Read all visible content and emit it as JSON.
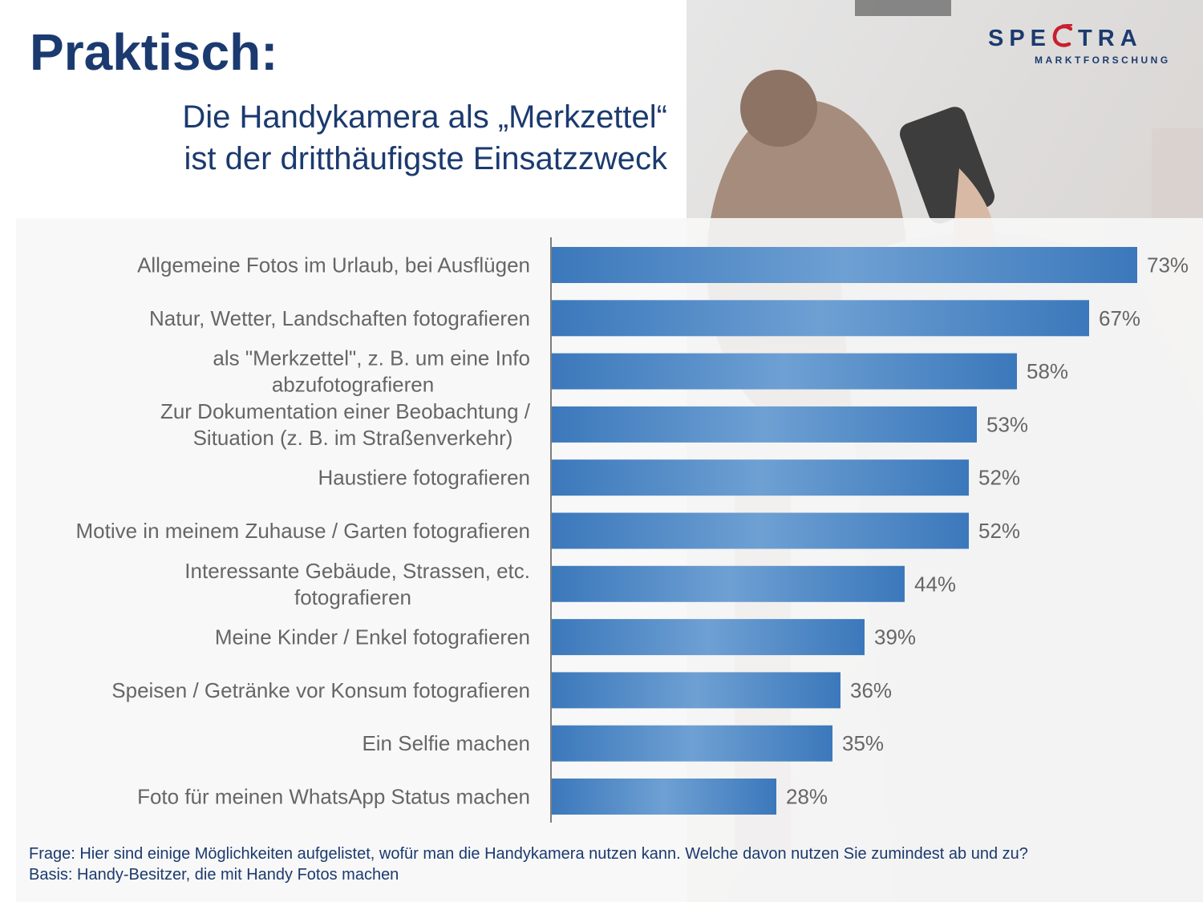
{
  "header": {
    "title": "Praktisch:",
    "subtitle_line1": "Die Handykamera als „Merkzettel“",
    "subtitle_line2": "ist der dritthäufigste Einsatzzweck"
  },
  "logo": {
    "word_a": "SPE",
    "word_b": "TRA",
    "subtitle": "MARKTFORSCHUNG"
  },
  "colors": {
    "brand_blue": "#1b3a6f",
    "bar_dark": "#3b78bb",
    "bar_light": "#6ea0d3",
    "label_gray": "#666666",
    "logo_accent": "#c8202f"
  },
  "chart_data": {
    "type": "bar",
    "orientation": "horizontal",
    "categories": [
      [
        "Allgemeine Fotos im Urlaub, bei Ausflügen"
      ],
      [
        "Natur, Wetter, Landschaften fotografieren"
      ],
      [
        "als \"Merkzettel\", z. B. um eine Info",
        "abzufotografieren"
      ],
      [
        "Zur Dokumentation einer Beobachtung /",
        "Situation (z. B. im Straßenverkehr)"
      ],
      [
        "Haustiere fotografieren"
      ],
      [
        "Motive in meinem Zuhause / Garten fotografieren"
      ],
      [
        "Interessante Gebäude, Strassen, etc.",
        "fotografieren"
      ],
      [
        "Meine Kinder / Enkel fotografieren"
      ],
      [
        "Speisen / Getränke vor Konsum fotografieren"
      ],
      [
        "Ein Selfie machen"
      ],
      [
        "Foto für meinen WhatsApp Status machen"
      ]
    ],
    "values": [
      73,
      67,
      58,
      53,
      52,
      52,
      44,
      39,
      36,
      35,
      28
    ],
    "value_labels": [
      "73%",
      "67%",
      "58%",
      "53%",
      "52%",
      "52%",
      "44%",
      "39%",
      "36%",
      "35%",
      "28%"
    ],
    "unit": "%",
    "xlim": [
      0,
      80
    ],
    "grid": false,
    "legend": "none"
  },
  "footnote": {
    "question": "Frage: Hier sind einige Möglichkeiten aufgelistet, wofür man die Handykamera nutzen kann. Welche davon nutzen Sie zumindest ab und zu?",
    "basis": "Basis: Handy-Besitzer, die mit Handy Fotos machen"
  }
}
